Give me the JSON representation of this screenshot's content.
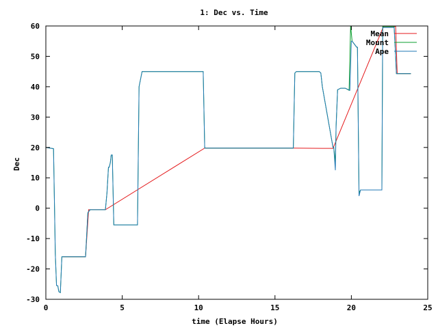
{
  "chart_data": {
    "type": "line",
    "title": "1: Dec vs. Time",
    "xlabel": "time (Elapse Hours)",
    "ylabel": "Dec",
    "xlim": [
      0,
      25
    ],
    "ylim": [
      -30,
      60
    ],
    "x_ticks": [
      0,
      5,
      10,
      15,
      20,
      25
    ],
    "y_ticks": [
      -30,
      -20,
      -10,
      0,
      10,
      20,
      30,
      40,
      50,
      60
    ],
    "grid": false,
    "legend_position": "top-right",
    "series": [
      {
        "name": "Mean",
        "color": "#e41a1c",
        "x": [
          1.1,
          2.6,
          2.8,
          3.9,
          10.4,
          16.2,
          18.1,
          18.8,
          22.1,
          22.9,
          23.0,
          23.9
        ],
        "y": [
          -16,
          -16,
          -0.5,
          -0.5,
          19.8,
          19.8,
          19.7,
          19.7,
          59.8,
          59.8,
          44.3,
          44.3
        ]
      },
      {
        "name": "Mount",
        "color": "#0a9e2d",
        "x": [
          0,
          0.5,
          0.55,
          0.62,
          0.7,
          0.78,
          0.85,
          0.95,
          1.05,
          1.15,
          2.6,
          2.75,
          2.9,
          3.9,
          4.0,
          4.1,
          4.15,
          4.22,
          4.28,
          4.35,
          4.45,
          6.0,
          6.1,
          6.3,
          8.3,
          10.3,
          10.4,
          10.45,
          16.2,
          16.3,
          16.4,
          17.9,
          18.0,
          18.1,
          18.8,
          18.85,
          18.95,
          19.0,
          19.1,
          19.3,
          19.6,
          19.85,
          19.95,
          20.05,
          20.35,
          20.4,
          20.5,
          20.6,
          22.0,
          22.05,
          22.8,
          22.9,
          22.95,
          23.9
        ],
        "y": [
          20,
          19.6,
          5,
          -15,
          -25.5,
          -25.5,
          -27.5,
          -27.8,
          -16,
          -16,
          -16,
          -1.5,
          -0.5,
          -0.5,
          5,
          13.5,
          13.5,
          15,
          17.5,
          17.5,
          -5.5,
          -5.5,
          40,
          45,
          45,
          45,
          20,
          19.8,
          19.8,
          44.5,
          45,
          45,
          44.5,
          40,
          20,
          20,
          15,
          27,
          39,
          39.5,
          39.5,
          38.8,
          60,
          55,
          53,
          53,
          5,
          6,
          6,
          59.8,
          59.8,
          50,
          44.3,
          44.3
        ]
      },
      {
        "name": "Ape",
        "color": "#1f77b4",
        "x": [
          0,
          0.5,
          0.55,
          0.62,
          0.7,
          0.78,
          0.85,
          0.95,
          1.05,
          1.15,
          2.6,
          2.75,
          2.9,
          3.9,
          4.0,
          4.1,
          4.15,
          4.22,
          4.28,
          4.35,
          4.45,
          6.0,
          6.1,
          6.3,
          10.3,
          10.4,
          16.2,
          16.3,
          16.4,
          17.9,
          18.0,
          18.1,
          18.8,
          18.85,
          18.95,
          19.0,
          19.1,
          19.3,
          19.6,
          19.9,
          20.0,
          20.05,
          20.35,
          20.4,
          20.5,
          20.6,
          22.0,
          22.05,
          22.8,
          22.9,
          22.95,
          23.9
        ],
        "y": [
          20,
          19.6,
          5,
          -15,
          -25.5,
          -25.5,
          -27.5,
          -27.8,
          -16,
          -16,
          -16,
          -1.5,
          -0.5,
          -0.5,
          5,
          13.5,
          13.5,
          15,
          17.5,
          17.5,
          -5.5,
          -5.5,
          40,
          45,
          45,
          19.8,
          19.8,
          44.5,
          45,
          45,
          44.5,
          40,
          20,
          20,
          12.5,
          27,
          39,
          39.5,
          39.5,
          38.8,
          55,
          55,
          53,
          53,
          4,
          6,
          6,
          59.5,
          59.5,
          50,
          44.3,
          44.3
        ]
      }
    ]
  }
}
